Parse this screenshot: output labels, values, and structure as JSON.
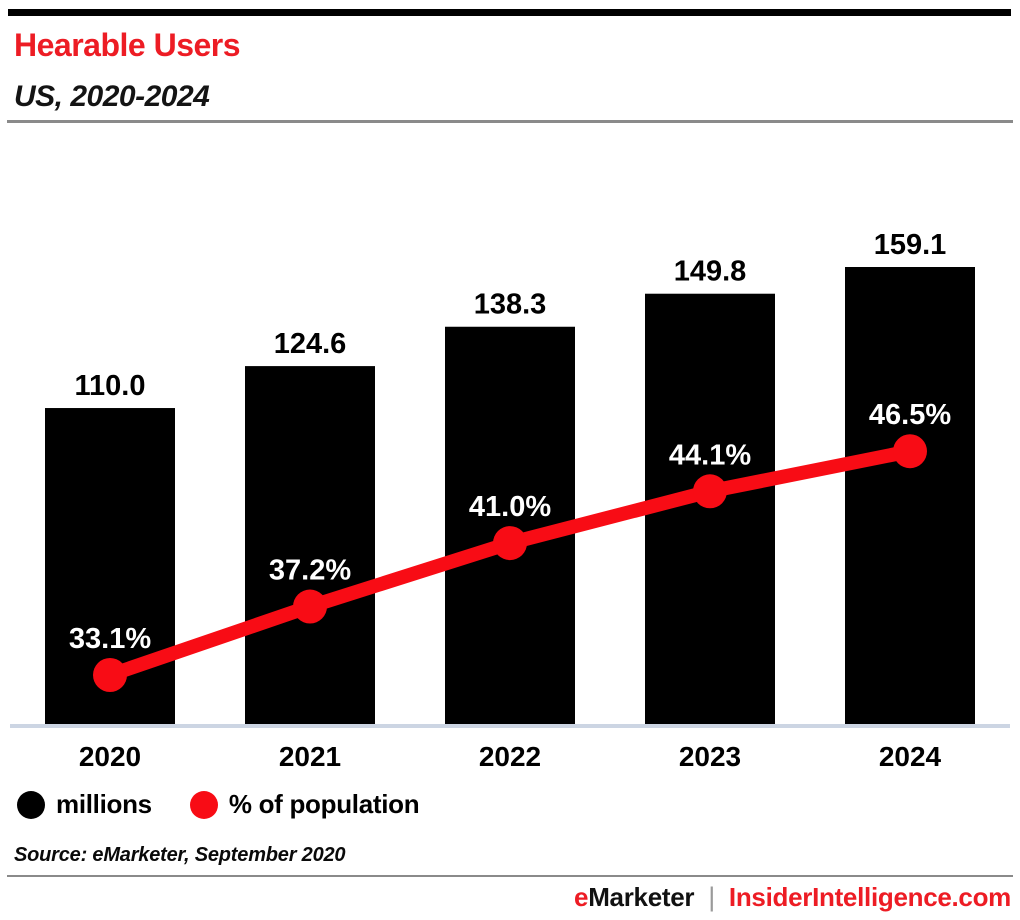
{
  "header": {
    "title": "Hearable Users",
    "subtitle": "US, 2020-2024"
  },
  "chart_data": {
    "type": "bar",
    "subtype": "bar+line combo",
    "title": "Hearable Users",
    "subtitle": "US, 2020-2024",
    "categories": [
      "2020",
      "2021",
      "2022",
      "2023",
      "2024"
    ],
    "series": [
      {
        "name": "millions",
        "type": "bar",
        "color": "#000000",
        "values": [
          110.0,
          124.6,
          138.3,
          149.8,
          159.1
        ],
        "labels": [
          "110.0",
          "124.6",
          "138.3",
          "149.8",
          "159.1"
        ],
        "label_color": "#000000"
      },
      {
        "name": "% of population",
        "type": "line",
        "color": "#f80c15",
        "values": [
          33.1,
          37.2,
          41.0,
          44.1,
          46.5
        ],
        "labels": [
          "33.1%",
          "37.2%",
          "41.0%",
          "44.1%",
          "46.5%"
        ],
        "label_color": "#ffffff"
      }
    ],
    "bar_axis_range": [
      0,
      159.1
    ],
    "grid": false,
    "axis_line_color": "#ccd5e3",
    "legend_position": "bottom-left"
  },
  "legend": {
    "items": [
      {
        "label": "millions",
        "color": "#000000"
      },
      {
        "label": "% of population",
        "color": "#f80c15"
      }
    ]
  },
  "source": {
    "text": "Source: eMarketer, September 2020"
  },
  "footer": {
    "brand_e": "e",
    "brand_marketer": "Marketer",
    "separator": "|",
    "site": "InsiderIntelligence.com"
  },
  "colors": {
    "title_red": "#ed1c24",
    "chart_red": "#f80c15",
    "bar_black": "#000000",
    "divider_gray": "#8a8a8a",
    "axis_baseline": "#ccd5e3",
    "footer_pipe_gray": "#9a9a9a"
  }
}
